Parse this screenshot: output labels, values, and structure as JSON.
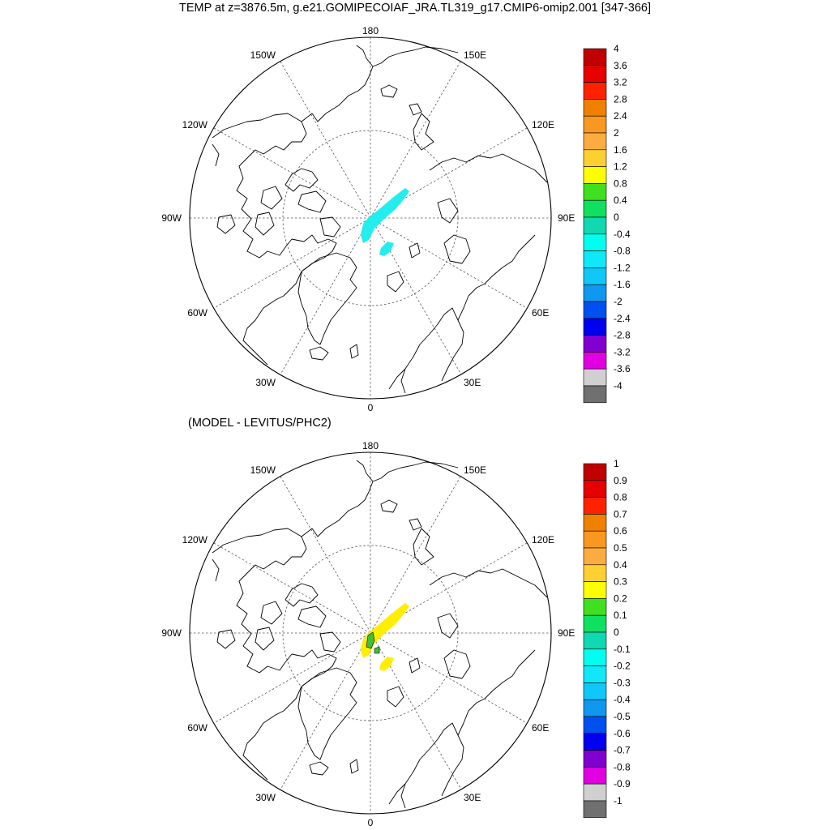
{
  "title": "TEMP at z=3876.5m, g.e21.GOMIPECOIAF_JRA.TL319_g17.CMIP6-omip2.001 [347-366]",
  "subtitle": "(MODEL - LEVITUS/PHC2)",
  "lon_labels": {
    "top": "180",
    "bottom": "0",
    "left": "90W",
    "right": "90E",
    "upper_left_1": "150W",
    "upper_left_2": "120W",
    "upper_right_1": "150E",
    "upper_right_2": "120E",
    "lower_left_1": "60W",
    "lower_left_2": "30W",
    "lower_right_1": "60E",
    "lower_right_2": "30E"
  },
  "panels": [
    {
      "name": "model-temperature",
      "colorbar": {
        "levels": [
          "4",
          "3.6",
          "3.2",
          "2.8",
          "2.4",
          "2",
          "1.6",
          "1.2",
          "0.8",
          "0.4",
          "0",
          "-0.4",
          "-0.8",
          "-1.2",
          "-1.6",
          "-2",
          "-2.4",
          "-2.8",
          "-3.2",
          "-3.6",
          "-4"
        ],
        "colors": [
          "#c00000",
          "#e60000",
          "#ff2200",
          "#f08000",
          "#f89820",
          "#faac40",
          "#fcd030",
          "#ffff00",
          "#40e020",
          "#10e060",
          "#10d8b0",
          "#00ffee",
          "#10e8f8",
          "#10c8f8",
          "#1098f0",
          "#0050f0",
          "#0000f0",
          "#8000d0",
          "#e000e0",
          "#d0d0d0",
          "#707070"
        ]
      },
      "field_color": "#22eeee"
    },
    {
      "name": "model-minus-levitus",
      "colorbar": {
        "levels": [
          "1",
          "0.9",
          "0.8",
          "0.7",
          "0.6",
          "0.5",
          "0.4",
          "0.3",
          "0.2",
          "0.1",
          "0",
          "-0.1",
          "-0.2",
          "-0.3",
          "-0.4",
          "-0.5",
          "-0.6",
          "-0.7",
          "-0.8",
          "-0.9",
          "-1"
        ],
        "colors": [
          "#c00000",
          "#e60000",
          "#ff2200",
          "#f08000",
          "#f89820",
          "#faac40",
          "#fcd030",
          "#ffff00",
          "#40e020",
          "#10e060",
          "#10d8b0",
          "#00ffee",
          "#10e8f8",
          "#10c8f8",
          "#1098f0",
          "#0050f0",
          "#0000f0",
          "#8000d0",
          "#e000e0",
          "#d0d0d0",
          "#707070"
        ]
      },
      "field_color": "#ffee00",
      "accent_color": "#40c040"
    }
  ]
}
